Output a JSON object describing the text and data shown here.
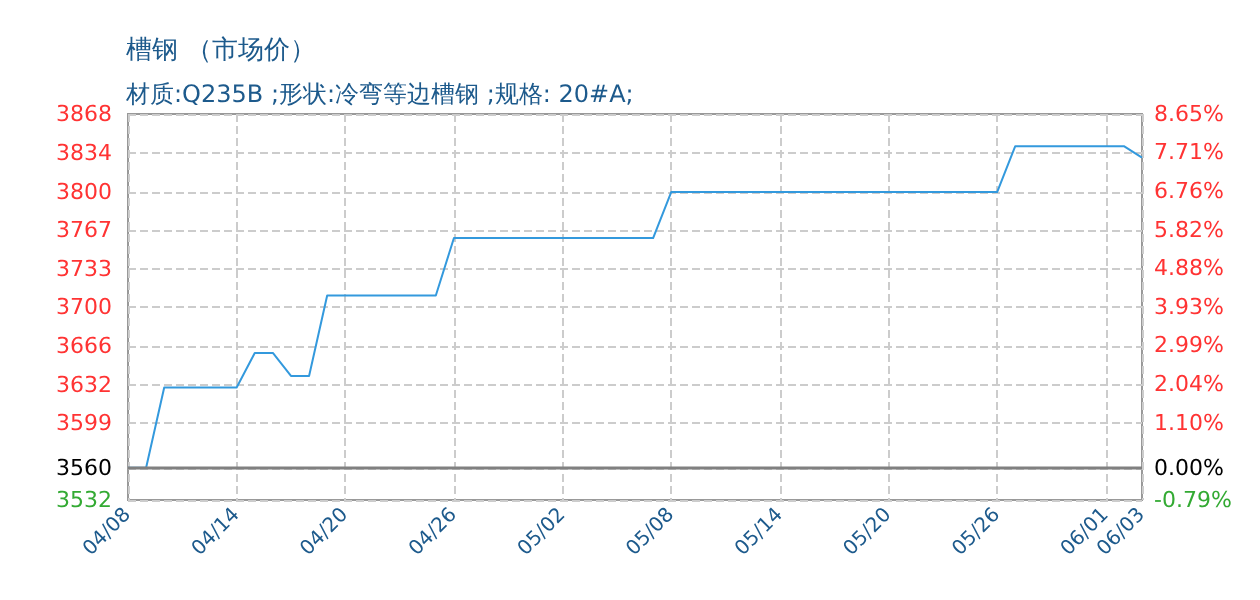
{
  "chart_data": {
    "type": "line",
    "title": "槽钢 （市场价）",
    "subtitle": "材质:Q235B ;形状:冷弯等边槽钢 ;规格: 20#A;",
    "x": [
      "--04-08",
      "--04-09",
      "--04-10",
      "--04-14",
      "--04-15",
      "--04-16",
      "--04-17",
      "--04-18",
      "--04-19",
      "--04-25",
      "--04-26",
      "--05-07",
      "--05-08",
      "--05-26",
      "--05-27",
      "--06-02",
      "--06-03"
    ],
    "series": [
      {
        "color": "#3399dd",
        "values": [
          3560,
          3560,
          3630,
          3630,
          3660,
          3660,
          3640,
          3640,
          3710,
          3710,
          3760,
          3760,
          3800,
          3800,
          3840,
          3840,
          3830
        ]
      }
    ],
    "xlim": [
      "--04-08",
      "--06-03"
    ],
    "xticks": [
      {
        "value": "--04-08",
        "label": "04/08"
      },
      {
        "value": "--04-14",
        "label": "04/14"
      },
      {
        "value": "--04-20",
        "label": "04/20"
      },
      {
        "value": "--04-26",
        "label": "04/26"
      },
      {
        "value": "--05-02",
        "label": "05/02"
      },
      {
        "value": "--05-08",
        "label": "05/08"
      },
      {
        "value": "--05-14",
        "label": "05/14"
      },
      {
        "value": "--05-20",
        "label": "05/20"
      },
      {
        "value": "--05-26",
        "label": "05/26"
      },
      {
        "value": "--06-01",
        "label": "06/01"
      },
      {
        "value": "--06-03",
        "label": "06/03"
      }
    ],
    "ylim": [
      3532,
      3868
    ],
    "yticks": [
      3532,
      3560,
      3599,
      3632,
      3666,
      3700,
      3733,
      3767,
      3800,
      3834,
      3868
    ],
    "y2lim": [
      -0.79,
      8.65
    ],
    "y2ticks": [
      {
        "value": -0.79,
        "label": "-0.79%"
      },
      {
        "value": 0,
        "label": "0.00%"
      },
      {
        "value": 1.1,
        "label": "1.10%"
      },
      {
        "value": 2.04,
        "label": "2.04%"
      },
      {
        "value": 2.99,
        "label": "2.99%"
      },
      {
        "value": 3.93,
        "label": "3.93%"
      },
      {
        "value": 4.88,
        "label": "4.88%"
      },
      {
        "value": 5.82,
        "label": "5.82%"
      },
      {
        "value": 6.76,
        "label": "6.76%"
      },
      {
        "value": 7.71,
        "label": "7.71%"
      },
      {
        "value": 8.65,
        "label": "8.65%"
      }
    ],
    "ref_lines": [
      {
        "axis": "y",
        "value": 3560,
        "color": "#808080"
      }
    ],
    "grid": true,
    "marker": "none",
    "line_style": "solid"
  }
}
